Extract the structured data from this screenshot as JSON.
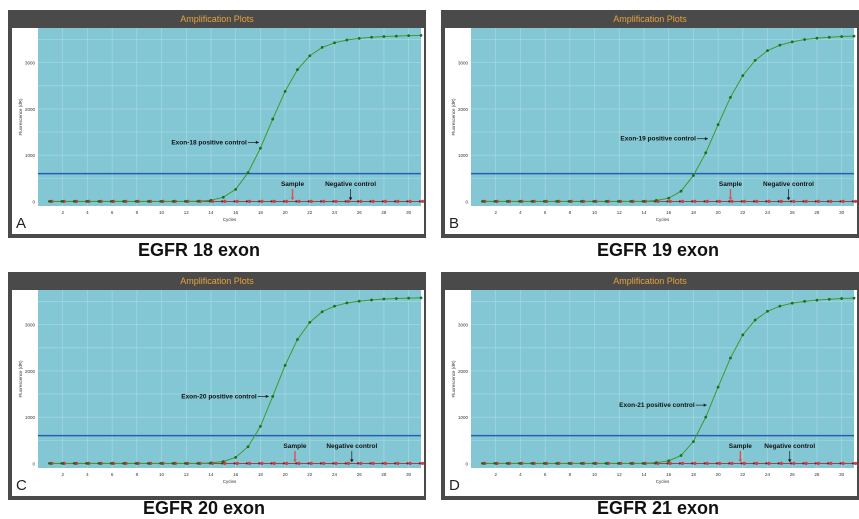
{
  "colors": {
    "frame": "#4a4a4a",
    "title_text": "#e8a23a",
    "plot_bg": "#84c7d4",
    "grid": "#a8dbe3",
    "threshold": "#2a5cb5",
    "positive_curve": "#3c9a2e",
    "positive_marker": "#1f6d1a",
    "sample_marker": "#d93a3a",
    "negative_marker": "#7a1a2a",
    "annotation_arrow": "#1a1a1a",
    "sample_arrow": "#e05050"
  },
  "chart_data": [
    {
      "type": "line",
      "panel_letter": "A",
      "title": "Amplification Plots",
      "caption": "EGFR 18 exon",
      "xlabel": "Cycles",
      "ylabel": "Fluorescence (dR)",
      "xlim": [
        0,
        31
      ],
      "ylim": [
        -100,
        3750
      ],
      "xticks": [
        2,
        4,
        6,
        8,
        10,
        12,
        14,
        16,
        18,
        20,
        22,
        24,
        26,
        28,
        30
      ],
      "yticks": [
        0,
        1000,
        2000,
        3000
      ],
      "threshold": 600,
      "series": [
        {
          "name": "Exon-18 positive control",
          "x": [
            1,
            2,
            3,
            4,
            5,
            6,
            7,
            8,
            9,
            10,
            11,
            12,
            13,
            14,
            15,
            16,
            17,
            18,
            19,
            20,
            21,
            22,
            23,
            24,
            25,
            26,
            27,
            28,
            29,
            30,
            31
          ],
          "values": [
            0,
            0,
            0,
            0,
            0,
            0,
            0,
            0,
            0,
            0,
            0,
            0,
            5,
            25,
            90,
            260,
            620,
            1150,
            1780,
            2380,
            2850,
            3150,
            3330,
            3430,
            3490,
            3525,
            3550,
            3565,
            3575,
            3585,
            3590
          ]
        },
        {
          "name": "Sample",
          "x": [
            1,
            2,
            3,
            4,
            5,
            6,
            7,
            8,
            9,
            10,
            11,
            12,
            13,
            14,
            15,
            16,
            17,
            18,
            19,
            20,
            21,
            22,
            23,
            24,
            25,
            26,
            27,
            28,
            29,
            30,
            31
          ],
          "values": [
            0,
            0,
            0,
            0,
            0,
            0,
            0,
            0,
            0,
            0,
            0,
            0,
            0,
            0,
            0,
            0,
            0,
            0,
            0,
            0,
            0,
            0,
            0,
            0,
            0,
            0,
            0,
            0,
            0,
            0,
            0
          ]
        },
        {
          "name": "Negative control",
          "x": [
            1,
            2,
            3,
            4,
            5,
            6,
            7,
            8,
            9,
            10,
            11,
            12,
            13,
            14,
            15,
            16,
            17,
            18,
            19,
            20,
            21,
            22,
            23,
            24,
            25,
            26,
            27,
            28,
            29,
            30,
            31
          ],
          "values": [
            0,
            0,
            0,
            0,
            0,
            0,
            0,
            0,
            0,
            0,
            0,
            0,
            0,
            0,
            0,
            0,
            0,
            0,
            0,
            0,
            0,
            0,
            0,
            0,
            0,
            0,
            0,
            0,
            0,
            0,
            0
          ]
        }
      ],
      "annotations": [
        {
          "text": "Exon-18 positive control",
          "target": "Exon-18 positive control",
          "at_x": 18.2
        },
        {
          "text": "Sample",
          "target": "Sample",
          "at_x": 20.6
        },
        {
          "text": "Negative control",
          "target": "Negative control",
          "at_x": 25.3
        }
      ]
    },
    {
      "type": "line",
      "panel_letter": "B",
      "title": "Amplification Plots",
      "caption": "EGFR 19 exon",
      "xlabel": "Cycles",
      "ylabel": "Fluorescence (dR)",
      "xlim": [
        0,
        31
      ],
      "ylim": [
        -100,
        3750
      ],
      "xticks": [
        2,
        4,
        6,
        8,
        10,
        12,
        14,
        16,
        18,
        20,
        22,
        24,
        26,
        28,
        30
      ],
      "yticks": [
        0,
        1000,
        2000,
        3000
      ],
      "threshold": 600,
      "series": [
        {
          "name": "Exon-19 positive control",
          "x": [
            1,
            2,
            3,
            4,
            5,
            6,
            7,
            8,
            9,
            10,
            11,
            12,
            13,
            14,
            15,
            16,
            17,
            18,
            19,
            20,
            21,
            22,
            23,
            24,
            25,
            26,
            27,
            28,
            29,
            30,
            31
          ],
          "values": [
            0,
            0,
            0,
            0,
            0,
            0,
            0,
            0,
            0,
            0,
            0,
            0,
            0,
            0,
            20,
            70,
            220,
            560,
            1050,
            1660,
            2250,
            2720,
            3050,
            3260,
            3380,
            3450,
            3500,
            3530,
            3550,
            3565,
            3575
          ]
        },
        {
          "name": "Sample",
          "x": [
            1,
            2,
            3,
            4,
            5,
            6,
            7,
            8,
            9,
            10,
            11,
            12,
            13,
            14,
            15,
            16,
            17,
            18,
            19,
            20,
            21,
            22,
            23,
            24,
            25,
            26,
            27,
            28,
            29,
            30,
            31
          ],
          "values": [
            0,
            0,
            0,
            0,
            0,
            0,
            0,
            0,
            0,
            0,
            0,
            0,
            0,
            0,
            0,
            0,
            0,
            0,
            0,
            0,
            0,
            0,
            0,
            0,
            0,
            0,
            0,
            0,
            0,
            0,
            0
          ]
        },
        {
          "name": "Negative control",
          "x": [
            1,
            2,
            3,
            4,
            5,
            6,
            7,
            8,
            9,
            10,
            11,
            12,
            13,
            14,
            15,
            16,
            17,
            18,
            19,
            20,
            21,
            22,
            23,
            24,
            25,
            26,
            27,
            28,
            29,
            30,
            31
          ],
          "values": [
            0,
            0,
            0,
            0,
            0,
            0,
            0,
            0,
            0,
            0,
            0,
            0,
            0,
            0,
            0,
            0,
            0,
            0,
            0,
            0,
            0,
            0,
            0,
            0,
            0,
            0,
            0,
            0,
            0,
            0,
            0
          ]
        }
      ],
      "annotations": [
        {
          "text": "Exon-19 positive control",
          "target": "Exon-19 positive control",
          "at_x": 19.5
        },
        {
          "text": "Sample",
          "target": "Sample",
          "at_x": 21.0
        },
        {
          "text": "Negative control",
          "target": "Negative control",
          "at_x": 25.7
        }
      ]
    },
    {
      "type": "line",
      "panel_letter": "C",
      "title": "Amplification Plots",
      "caption": "EGFR 20 exon",
      "xlabel": "Cycles",
      "ylabel": "Fluorescence (dR)",
      "xlim": [
        0,
        31
      ],
      "ylim": [
        -100,
        3750
      ],
      "xticks": [
        2,
        4,
        6,
        8,
        10,
        12,
        14,
        16,
        18,
        20,
        22,
        24,
        26,
        28,
        30
      ],
      "yticks": [
        0,
        1000,
        2000,
        3000
      ],
      "threshold": 600,
      "series": [
        {
          "name": "Exon-20 positive control",
          "x": [
            1,
            2,
            3,
            4,
            5,
            6,
            7,
            8,
            9,
            10,
            11,
            12,
            13,
            14,
            15,
            16,
            17,
            18,
            19,
            20,
            21,
            22,
            23,
            24,
            25,
            26,
            27,
            28,
            29,
            30,
            31
          ],
          "values": [
            0,
            0,
            0,
            0,
            0,
            0,
            0,
            0,
            0,
            0,
            0,
            0,
            0,
            10,
            40,
            130,
            360,
            800,
            1450,
            2120,
            2680,
            3050,
            3280,
            3400,
            3470,
            3510,
            3535,
            3555,
            3565,
            3575,
            3580
          ]
        },
        {
          "name": "Sample",
          "x": [
            1,
            2,
            3,
            4,
            5,
            6,
            7,
            8,
            9,
            10,
            11,
            12,
            13,
            14,
            15,
            16,
            17,
            18,
            19,
            20,
            21,
            22,
            23,
            24,
            25,
            26,
            27,
            28,
            29,
            30,
            31
          ],
          "values": [
            0,
            0,
            0,
            0,
            0,
            0,
            0,
            0,
            0,
            0,
            0,
            0,
            0,
            0,
            0,
            0,
            0,
            0,
            0,
            0,
            0,
            0,
            0,
            0,
            0,
            0,
            0,
            0,
            0,
            0,
            0
          ]
        },
        {
          "name": "Negative control",
          "x": [
            1,
            2,
            3,
            4,
            5,
            6,
            7,
            8,
            9,
            10,
            11,
            12,
            13,
            14,
            15,
            16,
            17,
            18,
            19,
            20,
            21,
            22,
            23,
            24,
            25,
            26,
            27,
            28,
            29,
            30,
            31
          ],
          "values": [
            0,
            0,
            0,
            0,
            0,
            0,
            0,
            0,
            0,
            0,
            0,
            0,
            0,
            0,
            0,
            0,
            0,
            0,
            0,
            0,
            0,
            0,
            0,
            0,
            0,
            0,
            0,
            0,
            0,
            0,
            0
          ]
        }
      ],
      "annotations": [
        {
          "text": "Exon-20 positive control",
          "target": "Exon-20 positive control",
          "at_x": 19.0
        },
        {
          "text": "Sample",
          "target": "Sample",
          "at_x": 20.8
        },
        {
          "text": "Negative control",
          "target": "Negative control",
          "at_x": 25.4
        }
      ]
    },
    {
      "type": "line",
      "panel_letter": "D",
      "title": "Amplification Plots",
      "caption": "EGFR 21 exon",
      "xlabel": "Cycles",
      "ylabel": "Fluorescence (dR)",
      "xlim": [
        0,
        31
      ],
      "ylim": [
        -100,
        3750
      ],
      "xticks": [
        2,
        4,
        6,
        8,
        10,
        12,
        14,
        16,
        18,
        20,
        22,
        24,
        26,
        28,
        30
      ],
      "yticks": [
        0,
        1000,
        2000,
        3000
      ],
      "threshold": 600,
      "series": [
        {
          "name": "Exon-21 positive control",
          "x": [
            1,
            2,
            3,
            4,
            5,
            6,
            7,
            8,
            9,
            10,
            11,
            12,
            13,
            14,
            15,
            16,
            17,
            18,
            19,
            20,
            21,
            22,
            23,
            24,
            25,
            26,
            27,
            28,
            29,
            30,
            31
          ],
          "values": [
            0,
            0,
            0,
            0,
            0,
            0,
            0,
            0,
            0,
            0,
            0,
            0,
            0,
            0,
            15,
            55,
            170,
            470,
            1000,
            1650,
            2280,
            2780,
            3100,
            3290,
            3400,
            3465,
            3505,
            3530,
            3550,
            3565,
            3575
          ]
        },
        {
          "name": "Sample",
          "x": [
            1,
            2,
            3,
            4,
            5,
            6,
            7,
            8,
            9,
            10,
            11,
            12,
            13,
            14,
            15,
            16,
            17,
            18,
            19,
            20,
            21,
            22,
            23,
            24,
            25,
            26,
            27,
            28,
            29,
            30,
            31
          ],
          "values": [
            0,
            0,
            0,
            0,
            0,
            0,
            0,
            0,
            0,
            0,
            0,
            0,
            0,
            0,
            0,
            0,
            0,
            0,
            0,
            0,
            0,
            0,
            0,
            0,
            0,
            0,
            0,
            0,
            0,
            0,
            0
          ]
        },
        {
          "name": "Negative control",
          "x": [
            1,
            2,
            3,
            4,
            5,
            6,
            7,
            8,
            9,
            10,
            11,
            12,
            13,
            14,
            15,
            16,
            17,
            18,
            19,
            20,
            21,
            22,
            23,
            24,
            25,
            26,
            27,
            28,
            29,
            30,
            31
          ],
          "values": [
            0,
            0,
            0,
            0,
            0,
            0,
            0,
            0,
            0,
            0,
            0,
            0,
            0,
            0,
            0,
            0,
            0,
            0,
            0,
            0,
            0,
            0,
            0,
            0,
            0,
            0,
            0,
            0,
            0,
            0,
            0
          ]
        }
      ],
      "annotations": [
        {
          "text": "Exon-21 positive control",
          "target": "Exon-21 positive control",
          "at_x": 19.4
        },
        {
          "text": "Sample",
          "target": "Sample",
          "at_x": 21.8
        },
        {
          "text": "Negative control",
          "target": "Negative control",
          "at_x": 25.8
        }
      ]
    }
  ]
}
